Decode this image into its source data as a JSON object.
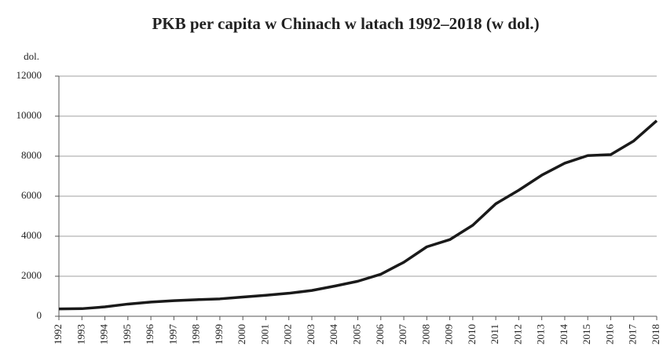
{
  "chart_data": {
    "type": "line",
    "title": "PKB per capita w Chinach w latach 1992–2018 (w dol.)",
    "y_label": "dol.",
    "categories": [
      "1992",
      "1993",
      "1994",
      "1995",
      "1996",
      "1997",
      "1998",
      "1999",
      "2000",
      "2001",
      "2002",
      "2003",
      "2004",
      "2005",
      "2006",
      "2007",
      "2008",
      "2009",
      "2010",
      "2011",
      "2012",
      "2013",
      "2014",
      "2015",
      "2016",
      "2017",
      "2018"
    ],
    "series": [
      {
        "name": "PKB per capita",
        "color": "#1a1a1a",
        "values": [
          370,
          380,
          470,
          610,
          710,
          780,
          830,
          870,
          960,
          1050,
          1150,
          1290,
          1510,
          1750,
          2100,
          2700,
          3470,
          3830,
          4550,
          5620,
          6300,
          7050,
          7650,
          8030,
          8080,
          8760,
          9770
        ]
      }
    ],
    "ylim": [
      0,
      12000
    ],
    "yticks": [
      0,
      2000,
      4000,
      6000,
      8000,
      10000,
      12000
    ],
    "grid": true
  }
}
